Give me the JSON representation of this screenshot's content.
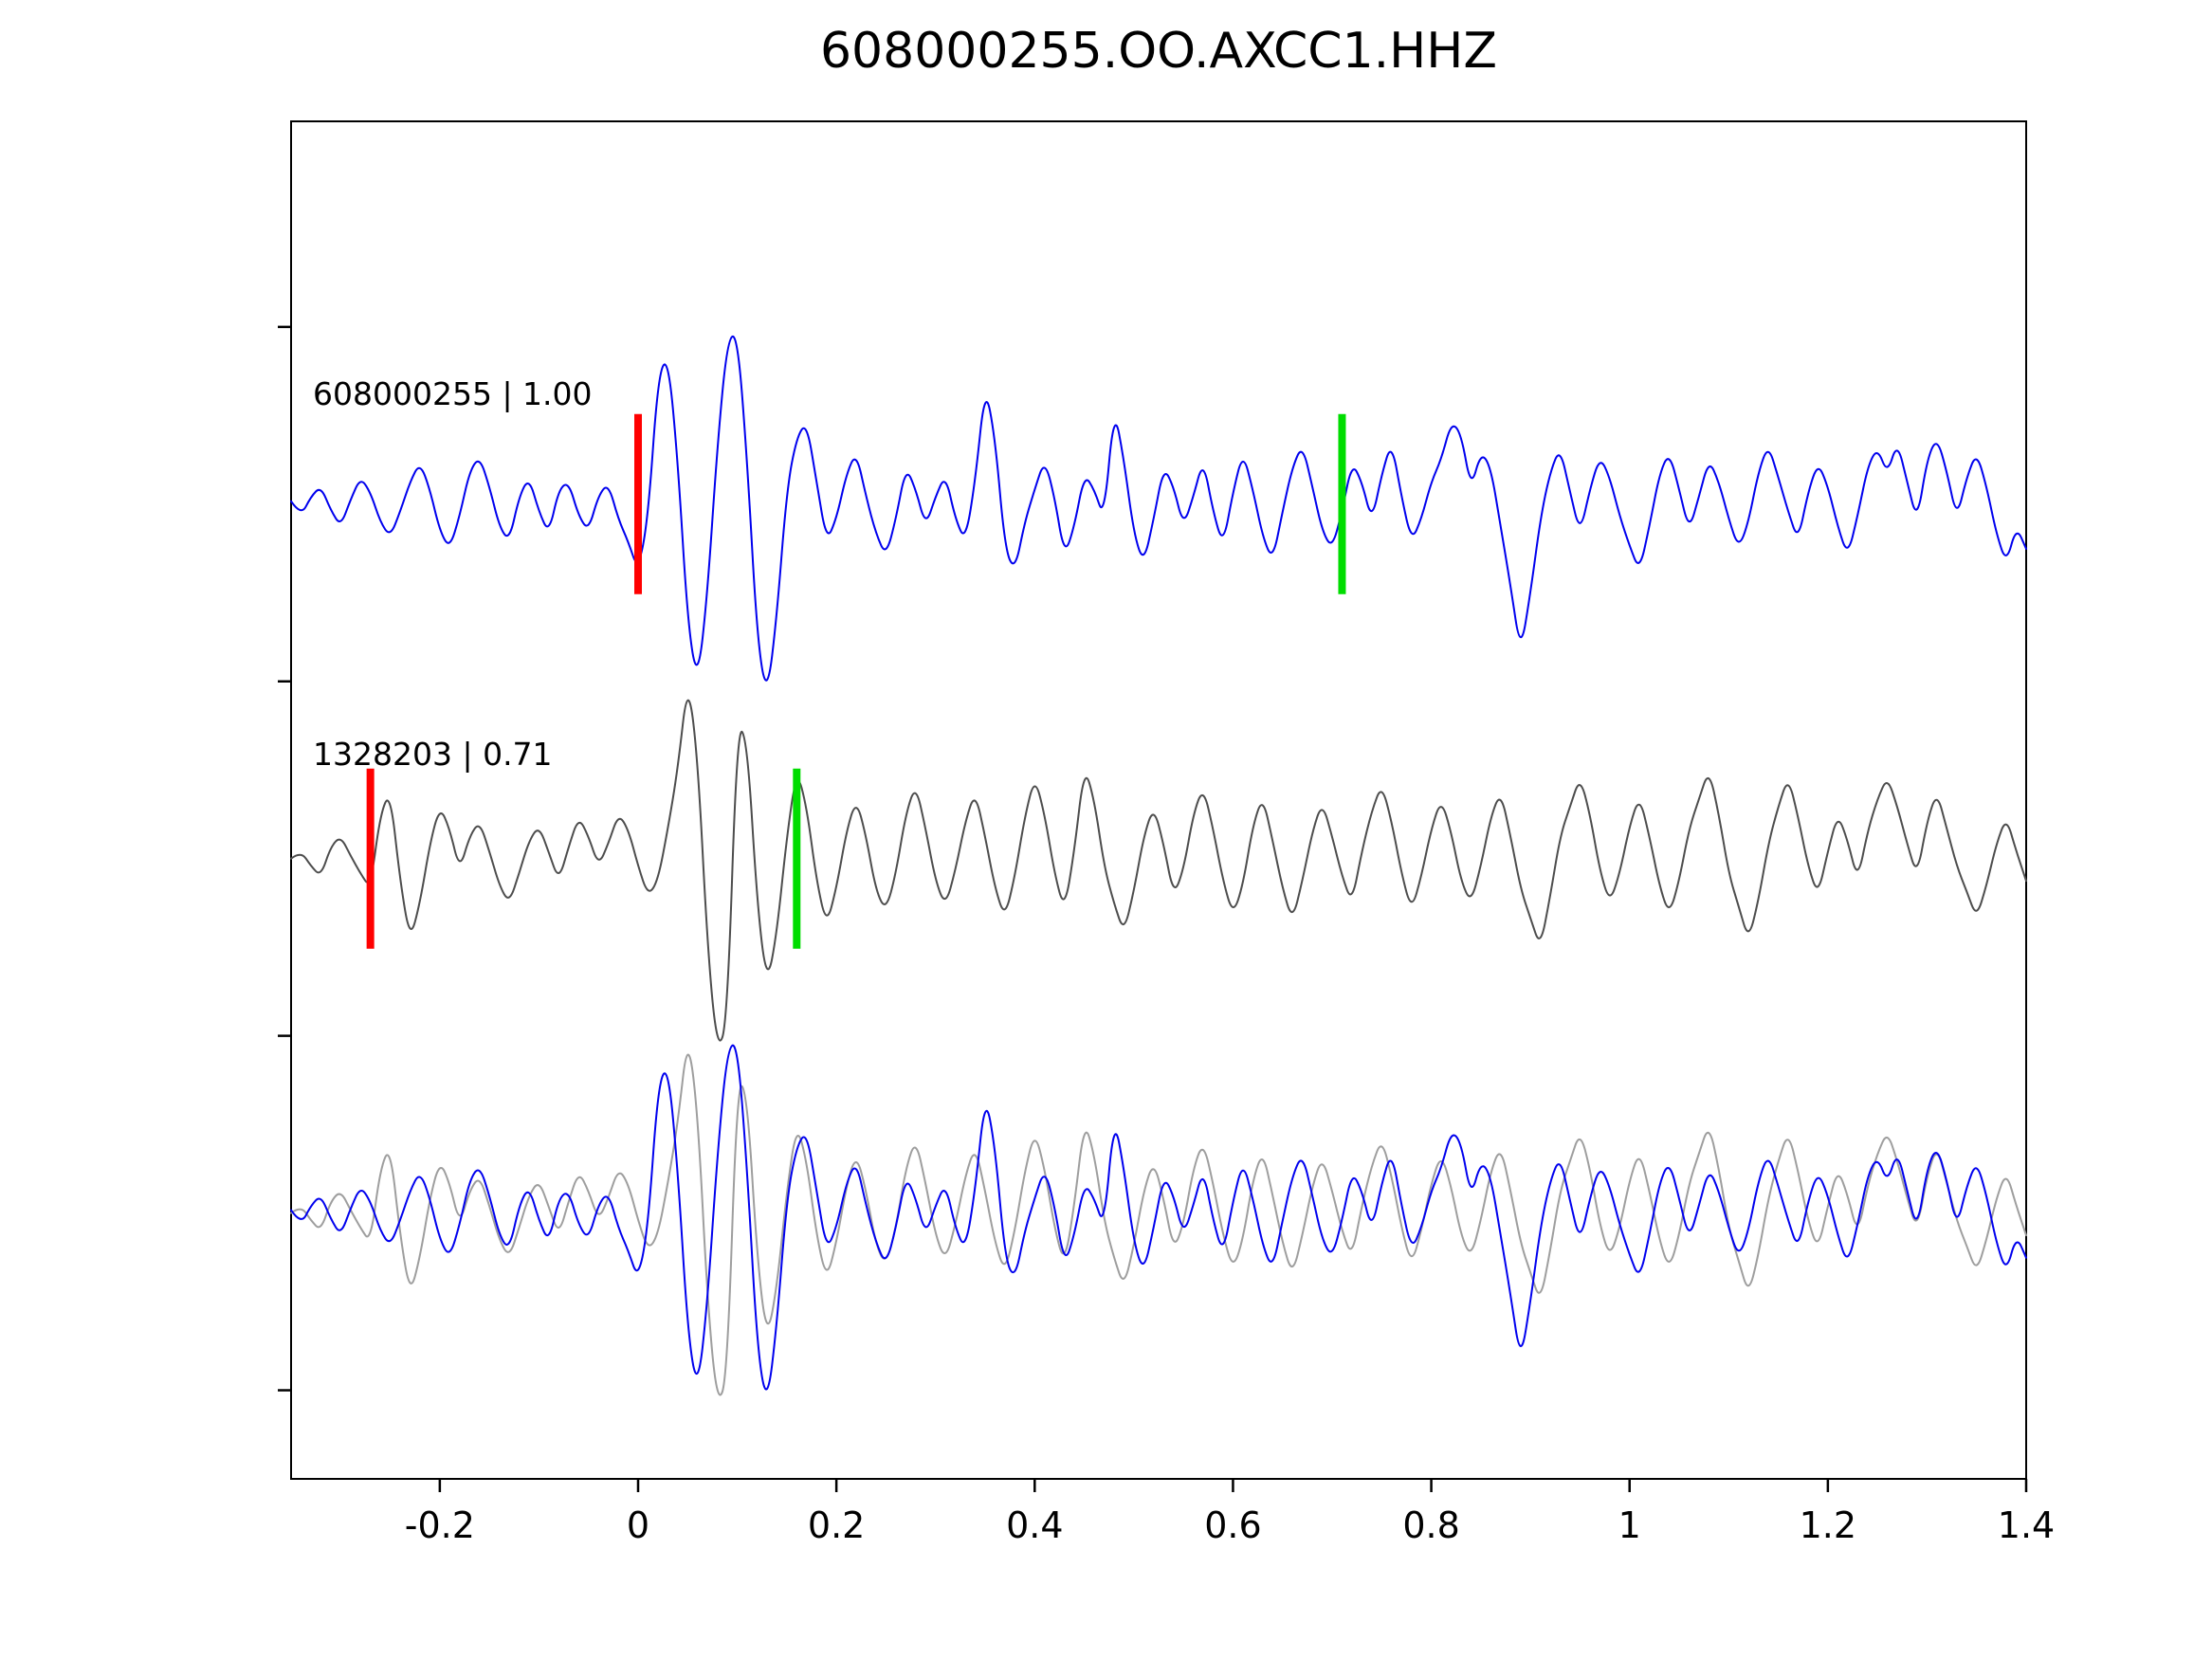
{
  "chart_data": {
    "type": "line",
    "title": "608000255.OO.AXCC1.HHZ",
    "xlim": [
      -0.35,
      1.4
    ],
    "ylim": [
      -0.75,
      3.08
    ],
    "xticks": [
      -0.2,
      0,
      0.2,
      0.4,
      0.6,
      0.8,
      1,
      1.2,
      1.4
    ],
    "xtick_labels": [
      "-0.2",
      "0",
      "0.2",
      "0.4",
      "0.6",
      "0.8",
      "1",
      "1.2",
      "1.4"
    ],
    "yticks": [
      2.5,
      1.5,
      0.5,
      -0.5
    ],
    "x_start": -0.35,
    "x_step": 0.01,
    "legend_position": "none",
    "grid": false,
    "series": [
      {
        "name": "detection-608000255",
        "label": "608000255 | 1.00",
        "id": "608000255",
        "correlation": "1.00",
        "color": "#0000ee",
        "offset": 2,
        "amplitude_scale": 0.42,
        "pick_markers": [
          {
            "x": 0.0,
            "color": "#ff0000",
            "kind": "pick-red"
          },
          {
            "x": 0.71,
            "color": "#00dd00",
            "kind": "pick-green"
          }
        ],
        "values": [
          0.02,
          -0.08,
          0.05,
          0.12,
          -0.04,
          -0.15,
          0.03,
          0.18,
          0.08,
          -0.12,
          -0.22,
          -0.05,
          0.15,
          0.28,
          0.1,
          -0.18,
          -0.3,
          -0.08,
          0.22,
          0.32,
          0.12,
          -0.15,
          -0.25,
          0.05,
          0.18,
          -0.05,
          -0.2,
          0.1,
          0.15,
          -0.08,
          -0.18,
          0.06,
          0.14,
          -0.1,
          -0.25,
          -0.45,
          -0.1,
          0.85,
          1.0,
          0.3,
          -0.8,
          -1.2,
          -0.6,
          0.4,
          1.1,
          1.15,
          0.3,
          -0.9,
          -1.3,
          -0.75,
          0.1,
          0.45,
          0.55,
          0.15,
          -0.25,
          -0.1,
          0.2,
          0.35,
          0.05,
          -0.2,
          -0.35,
          -0.1,
          0.25,
          0.1,
          -0.15,
          0.05,
          0.2,
          -0.1,
          -0.25,
          0.15,
          0.8,
          0.45,
          -0.3,
          -0.45,
          -0.12,
          0.1,
          0.3,
          0.05,
          -0.35,
          -0.15,
          0.2,
          0.1,
          -0.1,
          0.65,
          0.3,
          -0.2,
          -0.4,
          -0.1,
          0.25,
          0.12,
          -0.15,
          0.05,
          0.3,
          -0.05,
          -0.28,
          0.08,
          0.35,
          0.1,
          -0.22,
          -0.38,
          -0.05,
          0.25,
          0.4,
          0.12,
          -0.18,
          -0.3,
          -0.05,
          0.28,
          0.15,
          -0.12,
          0.2,
          0.42,
          0.05,
          -0.25,
          -0.1,
          0.15,
          0.3,
          0.55,
          0.48,
          0.1,
          0.35,
          0.25,
          -0.15,
          -0.55,
          -1.0,
          -0.6,
          -0.1,
          0.22,
          0.38,
          0.08,
          -0.2,
          0.1,
          0.32,
          0.18,
          -0.08,
          -0.28,
          -0.45,
          -0.15,
          0.2,
          0.35,
          0.1,
          -0.18,
          0.05,
          0.3,
          0.15,
          -0.1,
          -0.3,
          -0.12,
          0.22,
          0.4,
          0.18,
          -0.05,
          -0.25,
          0.08,
          0.28,
          0.12,
          -0.15,
          -0.35,
          -0.08,
          0.25,
          0.38,
          0.2,
          0.42,
          0.15,
          -0.12,
          0.3,
          0.45,
          0.22,
          -0.1,
          0.18,
          0.35,
          0.12,
          -0.2,
          -0.4,
          -0.15,
          -0.3
        ]
      },
      {
        "name": "template-1328203",
        "label": "1328203 | 0.71",
        "id": "1328203",
        "correlation": "0.71",
        "color": "#4d4d4d",
        "offset": 1,
        "amplitude_scale": 0.42,
        "pick_markers": [
          {
            "x": -0.27,
            "color": "#ff0000",
            "kind": "pick-red"
          },
          {
            "x": 0.16,
            "color": "#00dd00",
            "kind": "pick-green"
          }
        ],
        "values": [
          0.0,
          0.05,
          -0.05,
          -0.12,
          0.08,
          0.15,
          0.02,
          -0.1,
          -0.2,
          0.3,
          0.45,
          -0.15,
          -0.55,
          -0.3,
          0.1,
          0.35,
          0.2,
          -0.08,
          0.15,
          0.25,
          0.05,
          -0.18,
          -0.3,
          -0.1,
          0.12,
          0.22,
          0.04,
          -0.15,
          0.08,
          0.28,
          0.15,
          -0.05,
          0.1,
          0.3,
          0.2,
          -0.05,
          -0.25,
          -0.15,
          0.2,
          0.6,
          1.2,
          0.7,
          -0.6,
          -1.3,
          -1.1,
          0.9,
          0.8,
          -0.3,
          -0.85,
          -0.5,
          0.15,
          0.6,
          0.35,
          -0.15,
          -0.45,
          -0.2,
          0.18,
          0.4,
          0.15,
          -0.22,
          -0.35,
          -0.1,
          0.3,
          0.5,
          0.2,
          -0.15,
          -0.32,
          -0.08,
          0.25,
          0.45,
          0.15,
          -0.2,
          -0.4,
          -0.12,
          0.28,
          0.55,
          0.3,
          -0.1,
          -0.35,
          0.05,
          0.62,
          0.4,
          -0.05,
          -0.3,
          -0.5,
          -0.22,
          0.15,
          0.35,
          0.1,
          -0.25,
          -0.08,
          0.3,
          0.48,
          0.2,
          -0.15,
          -0.38,
          -0.18,
          0.22,
          0.42,
          0.12,
          -0.2,
          -0.42,
          -0.15,
          0.18,
          0.38,
          0.15,
          -0.12,
          -0.3,
          0.05,
          0.32,
          0.5,
          0.25,
          -0.1,
          -0.35,
          -0.12,
          0.2,
          0.4,
          0.18,
          -0.15,
          -0.3,
          -0.05,
          0.28,
          0.45,
          0.15,
          -0.2,
          -0.4,
          -0.6,
          -0.25,
          0.15,
          0.35,
          0.55,
          0.3,
          -0.08,
          -0.3,
          -0.1,
          0.22,
          0.42,
          0.15,
          -0.18,
          -0.38,
          -0.15,
          0.2,
          0.4,
          0.6,
          0.3,
          -0.1,
          -0.32,
          -0.55,
          -0.28,
          0.1,
          0.35,
          0.55,
          0.28,
          -0.05,
          -0.25,
          0.05,
          0.3,
          0.12,
          -0.15,
          0.18,
          0.4,
          0.55,
          0.35,
          0.1,
          -0.12,
          0.25,
          0.45,
          0.2,
          -0.05,
          -0.22,
          -0.4,
          -0.18,
          0.1,
          0.28,
          0.05,
          -0.15
        ]
      },
      {
        "name": "overlay-template",
        "color": "#9e9e9e",
        "offset": 0,
        "amplitude_scale": 0.42,
        "values_ref": "template-1328203",
        "pick_markers": []
      },
      {
        "name": "overlay-detection",
        "color": "#0000ee",
        "offset": 0,
        "amplitude_scale": 0.42,
        "values_ref": "detection-608000255",
        "pick_markers": []
      }
    ]
  }
}
